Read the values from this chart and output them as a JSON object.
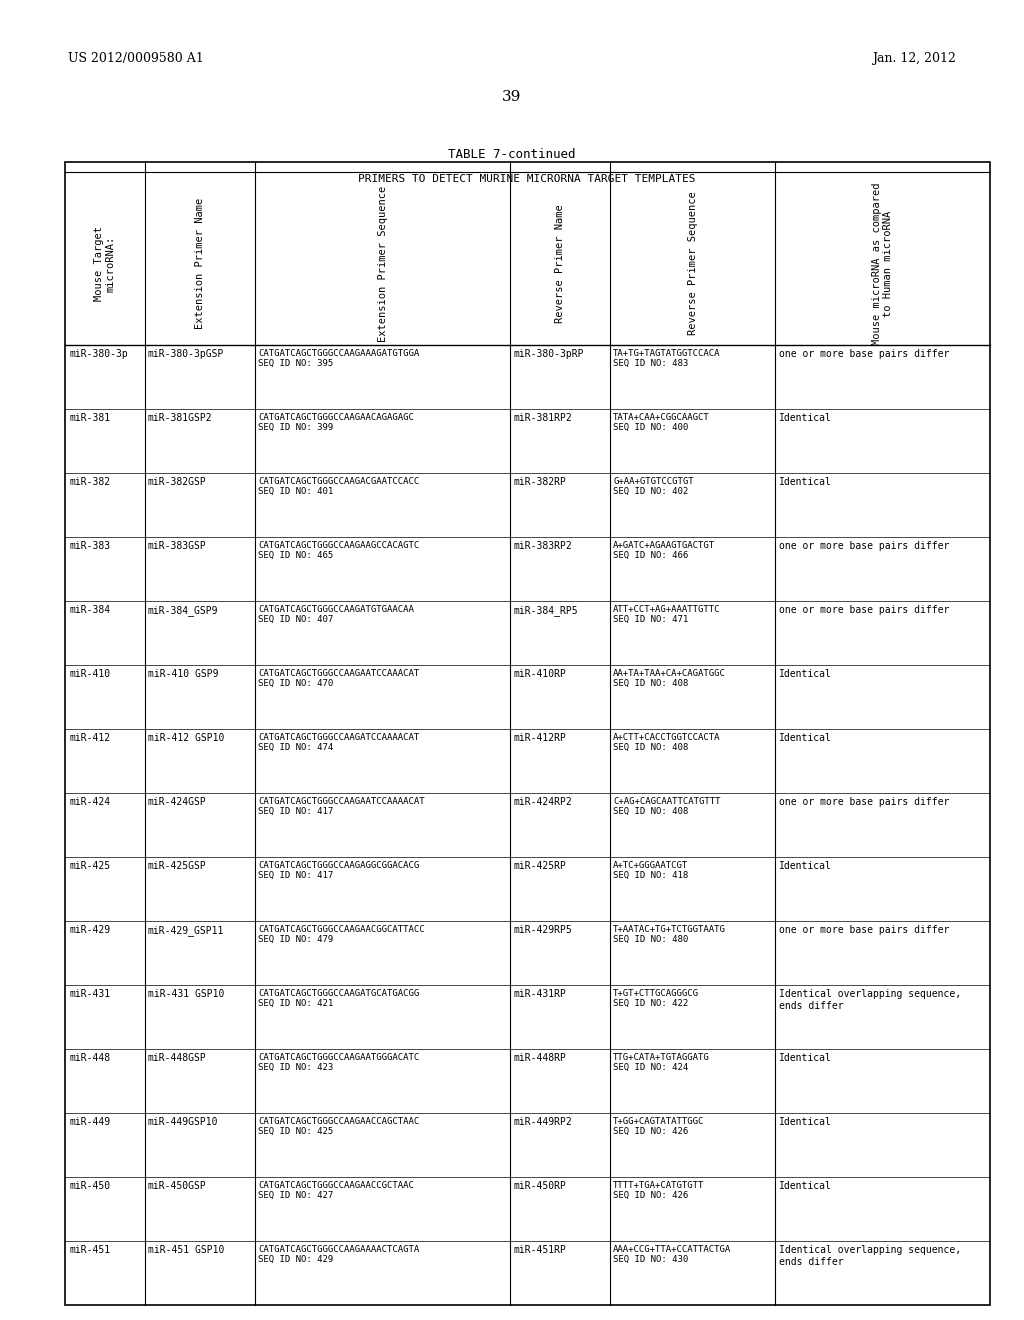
{
  "patent_left": "US 2012/0009580 A1",
  "patent_right": "Jan. 12, 2012",
  "page_number": "39",
  "table_title": "TABLE 7-continued",
  "table_subtitle": "PRIMERS TO DETECT MURINE MICRORNA TARGET TEMPLATES",
  "rows": [
    {
      "mirna": "miR-380-3p",
      "ext_name": "miR-380-3pGSP",
      "ext_seq": "CATGATCAGCTGGGCCAAGAAAGATGTGGA\nSEQ ID NO: 395",
      "rev_name": "miR-380-3pRP",
      "rev_seq": "TA+TG+TAGTATGGTCCACA\nSEQ ID NO: 483",
      "comparison": "one or more base pairs differ"
    },
    {
      "mirna": "miR-381",
      "ext_name": "miR-381GSP2",
      "ext_seq": "CATGATCAGCTGGGCCAAGAACAGAGAGC\nSEQ ID NO: 399",
      "rev_name": "miR-381RP2",
      "rev_seq": "TATA+CAA+CGGCAAGCT\nSEQ ID NO: 400",
      "comparison": "Identical"
    },
    {
      "mirna": "miR-382",
      "ext_name": "miR-382GSP",
      "ext_seq": "CATGATCAGCTGGGCCAAGACGAATCCACC\nSEQ ID NO: 401",
      "rev_name": "miR-382RP",
      "rev_seq": "G+AA+GTGTCCGTGT\nSEQ ID NO: 402",
      "comparison": "Identical"
    },
    {
      "mirna": "miR-383",
      "ext_name": "miR-383GSP",
      "ext_seq": "CATGATCAGCTGGGCCAAGAAGCCACAGTC\nSEQ ID NO: 465",
      "rev_name": "miR-383RP2",
      "rev_seq": "A+GATC+AGAAGTGACTGT\nSEQ ID NO: 466",
      "comparison": "one or more base pairs differ"
    },
    {
      "mirna": "miR-384",
      "ext_name": "miR-384_GSP9",
      "ext_seq": "CATGATCAGCTGGGCCAAGATGTGAACAA\nSEQ ID NO: 407",
      "rev_name": "miR-384_RP5",
      "rev_seq": "ATT+CCT+AG+AAATTGTTC\nSEQ ID NO: 471",
      "comparison": "one or more base pairs differ"
    },
    {
      "mirna": "miR-410",
      "ext_name": "miR-410 GSP9",
      "ext_seq": "CATGATCAGCTGGGCCAAGAATCCAAACAT\nSEQ ID NO: 470",
      "rev_name": "miR-410RP",
      "rev_seq": "AA+TA+TAA+CA+CAGATGGC\nSEQ ID NO: 408",
      "comparison": "Identical"
    },
    {
      "mirna": "miR-412",
      "ext_name": "miR-412 GSP10",
      "ext_seq": "CATGATCAGCTGGGCCAAGATCCAAAACAT\nSEQ ID NO: 474",
      "rev_name": "miR-412RP",
      "rev_seq": "A+CTT+CACCTGGTCCACTA\nSEQ ID NO: 408",
      "comparison": "Identical"
    },
    {
      "mirna": "miR-424",
      "ext_name": "miR-424GSP",
      "ext_seq": "CATGATCAGCTGGGCCAAGAATCCAAAACAT\nSEQ ID NO: 417",
      "rev_name": "miR-424RP2",
      "rev_seq": "C+AG+CAGCAATTCATGTTT\nSEQ ID NO: 408",
      "comparison": "one or more base pairs differ"
    },
    {
      "mirna": "miR-425",
      "ext_name": "miR-425GSP",
      "ext_seq": "CATGATCAGCTGGGCCAAGAGGCGGACACG\nSEQ ID NO: 417",
      "rev_name": "miR-425RP",
      "rev_seq": "A+TC+GGGAATCGT\nSEQ ID NO: 418",
      "comparison": "Identical"
    },
    {
      "mirna": "miR-429",
      "ext_name": "miR-429_GSP11",
      "ext_seq": "CATGATCAGCTGGGCCAAGAACGGCATTACC\nSEQ ID NO: 479",
      "rev_name": "miR-429RP5",
      "rev_seq": "T+AATAC+TG+TCTGGTAATG\nSEQ ID NO: 480",
      "comparison": "one or more base pairs differ"
    },
    {
      "mirna": "miR-431",
      "ext_name": "miR-431 GSP10",
      "ext_seq": "CATGATCAGCTGGGCCAAGATGCATGACGG\nSEQ ID NO: 421",
      "rev_name": "miR-431RP",
      "rev_seq": "T+GT+CTTGCAGGGCG\nSEQ ID NO: 422",
      "comparison": "Identical overlapping sequence,\nends differ"
    },
    {
      "mirna": "miR-448",
      "ext_name": "miR-448GSP",
      "ext_seq": "CATGATCAGCTGGGCCAAGAATGGGACATC\nSEQ ID NO: 423",
      "rev_name": "miR-448RP",
      "rev_seq": "TTG+CATA+TGTAGGATG\nSEQ ID NO: 424",
      "comparison": "Identical"
    },
    {
      "mirna": "miR-449",
      "ext_name": "miR-449GSP10",
      "ext_seq": "CATGATCAGCTGGGCCAAGAACCAGCTAAC\nSEQ ID NO: 425",
      "rev_name": "miR-449RP2",
      "rev_seq": "T+GG+CAGTATATTGGC\nSEQ ID NO: 426",
      "comparison": "Identical"
    },
    {
      "mirna": "miR-450",
      "ext_name": "miR-450GSP",
      "ext_seq": "CATGATCAGCTGGGCCAAGAACCGCTAAC\nSEQ ID NO: 427",
      "rev_name": "miR-450RP",
      "rev_seq": "TTTT+TGA+CATGTGTT\nSEQ ID NO: 426",
      "comparison": "Identical"
    },
    {
      "mirna": "miR-451",
      "ext_name": "miR-451 GSP10",
      "ext_seq": "CATGATCAGCTGGGCCAAGAAAACTCAGTA\nSEQ ID NO: 429",
      "rev_name": "miR-451RP",
      "rev_seq": "AAA+CCG+TTA+CCATTACTGA\nSEQ ID NO: 430",
      "comparison": "Identical overlapping sequence,\nends differ"
    }
  ]
}
